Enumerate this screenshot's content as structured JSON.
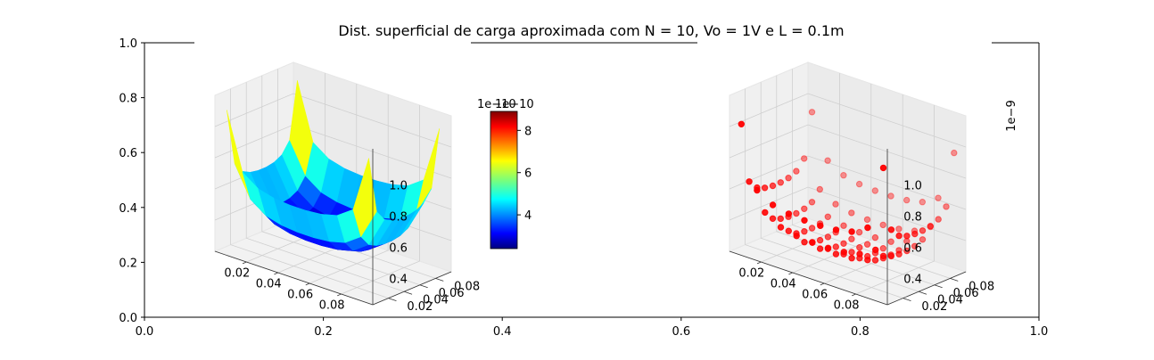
{
  "chart_data": [
    {
      "type": "frame",
      "title": "Dist. superficial de carga aproximada com N = 10, Vo = 1V e L = 0.1m",
      "xlim": [
        0,
        1
      ],
      "ylim": [
        0,
        1
      ],
      "x_ticks": [
        "0.0",
        "0.2",
        "0.4",
        "0.6",
        "0.8",
        "1.0"
      ],
      "y_ticks": [
        "0.0",
        "0.2",
        "0.4",
        "0.6",
        "0.8",
        "1.0"
      ]
    },
    {
      "type": "surface3d",
      "colormap": "jet",
      "x_ticks": [
        "0.02",
        "0.04",
        "0.06",
        "0.08"
      ],
      "y_ticks": [
        "0.02",
        "0.04",
        "0.06",
        "0.08"
      ],
      "z_ticks": [
        "0.4",
        "0.6",
        "0.8",
        "1.0"
      ],
      "z_offset_label": "1e−10",
      "colorbar": {
        "ticks": [
          "4",
          "6",
          "8"
        ],
        "tick_values": [
          4,
          6,
          8
        ],
        "range": [
          2.4,
          8.9
        ],
        "offset_label": "1e−10"
      }
    },
    {
      "type": "scatter3d",
      "marker_color": "#ff0000",
      "x_ticks": [
        "0.02",
        "0.04",
        "0.06",
        "0.08"
      ],
      "y_ticks": [
        "0.02",
        "0.04",
        "0.06",
        "0.08"
      ],
      "z_ticks": [
        "0.4",
        "0.6",
        "0.8",
        "1.0"
      ],
      "z_offset_label": "1e−9",
      "points": [
        {
          "i": 0,
          "j": 0,
          "z": 1.12
        },
        {
          "i": 9,
          "j": 0,
          "z": 1.15
        },
        {
          "i": 0,
          "j": 9,
          "z": 1.0
        },
        {
          "i": 9,
          "j": 9,
          "z": 1.05
        },
        {
          "i": 2,
          "j": 2,
          "z": 0.42
        },
        {
          "i": 4,
          "j": 4,
          "z": 0.34
        },
        {
          "i": 5,
          "j": 5,
          "z": 0.35
        },
        {
          "i": 7,
          "j": 7,
          "z": 0.42
        }
      ]
    }
  ]
}
